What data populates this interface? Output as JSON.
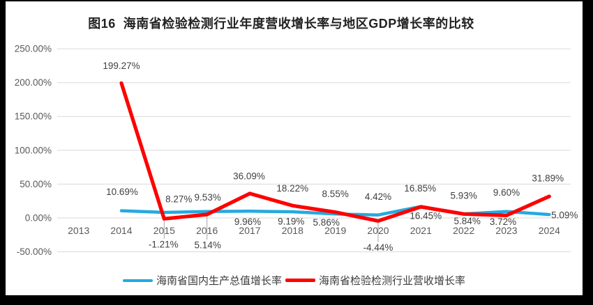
{
  "figure": {
    "border_color": "#000000",
    "background_color": "#ffffff"
  },
  "chart_data": {
    "type": "line",
    "title": "图16  海南省检验检测行业年度营收增长率与地区GDP增长率的比较",
    "categories": [
      "2013",
      "2014",
      "2015",
      "2016",
      "2017",
      "2018",
      "2019",
      "2020",
      "2021",
      "2022",
      "2023",
      "2024"
    ],
    "y_axis": {
      "tick_labels": [
        "250.00%",
        "200.00%",
        "150.00%",
        "100.00%",
        "50.00%",
        "0.00%",
        "-50.00%"
      ],
      "tick_values": [
        250,
        200,
        150,
        100,
        50,
        0,
        -50
      ],
      "min": -50,
      "max": 250,
      "grid": true,
      "grid_color": "#D9D9D9"
    },
    "legend_position": "bottom",
    "leader_line_color": "#A6A6A6",
    "series": [
      {
        "name": "海南省国内生产总值增长率",
        "color": "#24A9E1",
        "values": [
          null,
          10.69,
          8.27,
          9.53,
          9.96,
          9.19,
          5.86,
          4.42,
          16.85,
          5.93,
          9.6,
          5.09
        ],
        "labels": [
          null,
          "10.69%",
          "8.27%",
          "9.53%",
          "9.96%",
          "9.19%",
          "5.86%",
          "4.42%",
          "16.85%",
          "5.93%",
          "9.60%",
          "5.09%"
        ],
        "label_offsets": [
          null,
          [
            1,
            -27
          ],
          [
            21,
            -19
          ],
          [
            1,
            -20
          ],
          [
            -3,
            15
          ],
          [
            -2,
            14
          ],
          [
            -13,
            12
          ],
          [
            0,
            -26
          ],
          [
            -1,
            -26
          ],
          [
            0,
            -26
          ],
          [
            0,
            -27
          ],
          [
            22,
            1
          ]
        ],
        "leader_indices": []
      },
      {
        "name": "海南省检验检测行业营收增长率",
        "color": "#FF0000",
        "values": [
          null,
          199.27,
          -1.21,
          5.14,
          36.09,
          18.22,
          8.55,
          -4.44,
          16.45,
          5.84,
          3.72,
          31.89
        ],
        "labels": [
          null,
          "199.27%",
          "-1.21%",
          "5.14%",
          "36.09%",
          "18.22%",
          "8.55%",
          "-4.44%",
          "16.45%",
          "5.84%",
          "3.72%",
          "31.89%"
        ],
        "label_offsets": [
          null,
          [
            0,
            -25
          ],
          [
            -1,
            37
          ],
          [
            1,
            44
          ],
          [
            -1,
            -25
          ],
          [
            0,
            -25
          ],
          [
            0,
            -26
          ],
          [
            0,
            38
          ],
          [
            7,
            13
          ],
          [
            5,
            10
          ],
          [
            -5,
            9
          ],
          [
            -2,
            -26
          ]
        ],
        "leader_indices": [
          2,
          3,
          7
        ]
      }
    ]
  }
}
